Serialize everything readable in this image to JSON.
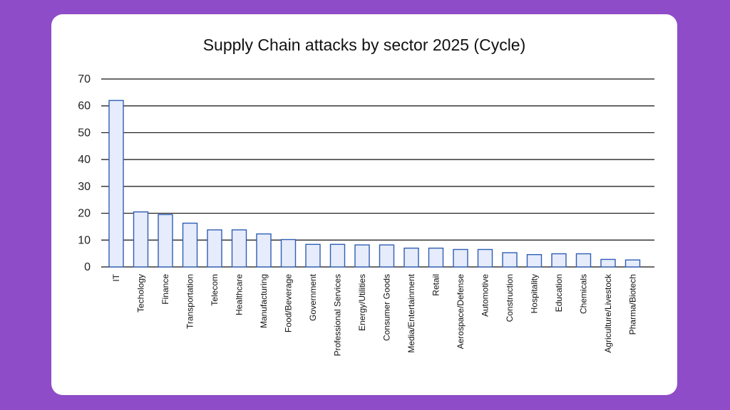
{
  "chart_data": {
    "type": "bar",
    "title": "Supply Chain attacks by sector 2025 (Cycle)",
    "xlabel": "",
    "ylabel": "",
    "ylim": [
      0,
      70
    ],
    "yticks": [
      "0",
      "10",
      "20",
      "30",
      "40",
      "50",
      "60",
      "70"
    ],
    "grid": true,
    "categories": [
      "IT",
      "Techology",
      "Finance",
      "Transportation",
      "Telecom",
      "Healthcare",
      "Manufacturing",
      "Food/Beverage",
      "Government",
      "Professional Services",
      "Energy/Utilities",
      "Consumer Goods",
      "Media/Entertainment",
      "Retail",
      "Aerospace/Defense",
      "Automotive",
      "Construction",
      "Hospitality",
      "Education",
      "Chemicals",
      "Agriculture/Livestock",
      "Pharma/Biotech"
    ],
    "values": [
      62,
      20.5,
      19.5,
      16.3,
      13.8,
      13.8,
      12.3,
      10.2,
      8.4,
      8.4,
      8.2,
      8.2,
      7.0,
      7.0,
      6.5,
      6.5,
      5.3,
      4.6,
      4.9,
      4.9,
      2.8,
      2.6
    ],
    "colors": {
      "bar_fill": "#e6ecfb",
      "bar_stroke": "#2f5eb5",
      "grid": "#111111"
    }
  }
}
